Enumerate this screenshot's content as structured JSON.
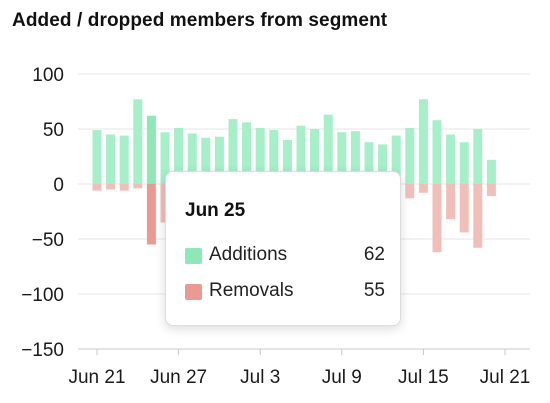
{
  "title": "Added / dropped members from segment",
  "colors": {
    "additions": "#a6efc9",
    "additions_active": "#8fe6b6",
    "removals": "#f1bfba",
    "removals_active": "#ea9a93",
    "grid": "#e6e6e6",
    "axis": "#c8c8c8"
  },
  "tooltip": {
    "date": "Jun 25",
    "rows": [
      {
        "label": "Additions",
        "value": "62"
      },
      {
        "label": "Removals",
        "value": "55"
      }
    ]
  },
  "chart_data": {
    "type": "bar",
    "title": "Added / dropped members from segment",
    "xlabel": "",
    "ylabel": "",
    "ylim": [
      -150,
      100
    ],
    "yticks": [
      100,
      50,
      0,
      -50,
      -100,
      -150
    ],
    "ytick_labels": [
      "100",
      "50",
      "0",
      "−50",
      "−100",
      "−150"
    ],
    "xtick_labels": [
      "Jun 21",
      "Jun 27",
      "Jul 3",
      "Jul 9",
      "Jul 15",
      "Jul 21"
    ],
    "xtick_index": [
      0,
      6,
      12,
      18,
      24,
      30
    ],
    "grid": true,
    "highlight_index": 4,
    "categories": [
      "Jun 21",
      "Jun 22",
      "Jun 23",
      "Jun 24",
      "Jun 25",
      "Jun 26",
      "Jun 27",
      "Jun 28",
      "Jun 29",
      "Jun 30",
      "Jul 1",
      "Jul 2",
      "Jul 3",
      "Jul 4",
      "Jul 5",
      "Jul 6",
      "Jul 7",
      "Jul 8",
      "Jul 9",
      "Jul 10",
      "Jul 11",
      "Jul 12",
      "Jul 13",
      "Jul 14",
      "Jul 15",
      "Jul 16",
      "Jul 17",
      "Jul 18",
      "Jul 19",
      "Jul 20"
    ],
    "series": [
      {
        "name": "Additions",
        "values": [
          49,
          45,
          44,
          77,
          62,
          47,
          51,
          46,
          42,
          43,
          59,
          56,
          51,
          49,
          40,
          53,
          50,
          63,
          47,
          48,
          38,
          36,
          44,
          51,
          77,
          58,
          45,
          38,
          50,
          22
        ]
      },
      {
        "name": "Removals",
        "values": [
          -6,
          -5,
          -6,
          -4,
          -55,
          -35,
          -30,
          -25,
          -28,
          -30,
          -20,
          -22,
          -18,
          -15,
          -20,
          -22,
          -18,
          -25,
          -20,
          -16,
          -12,
          -10,
          -12,
          -13,
          -8,
          -62,
          -32,
          -44,
          -58,
          -11
        ]
      }
    ]
  }
}
